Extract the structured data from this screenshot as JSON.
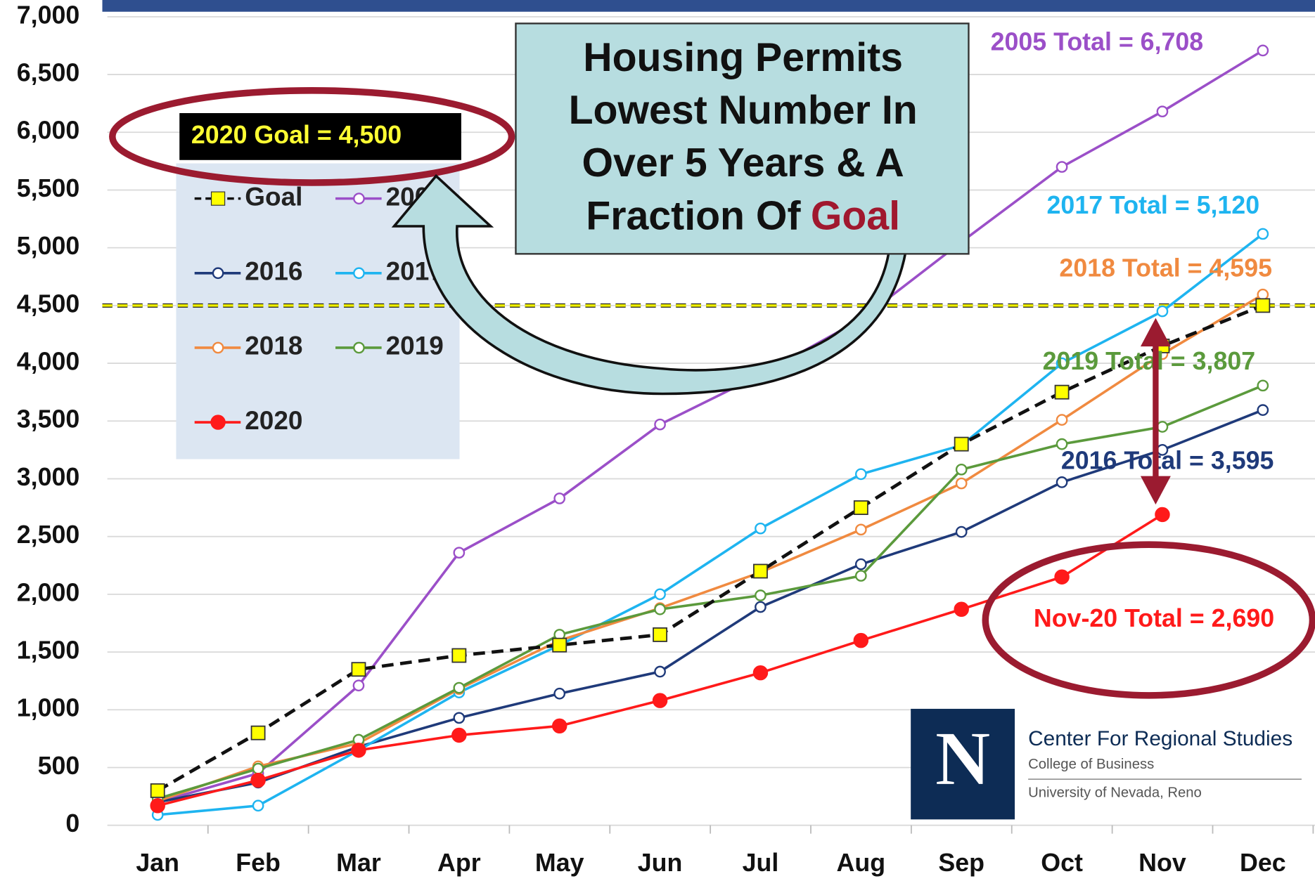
{
  "chart_data": {
    "type": "line",
    "categories": [
      "Jan",
      "Feb",
      "Mar",
      "Apr",
      "May",
      "Jun",
      "Jul",
      "Aug",
      "Sep",
      "Oct",
      "Nov",
      "Dec"
    ],
    "ylim": [
      0,
      7000
    ],
    "yticks": [
      0,
      500,
      {
        "value": 1000,
        "label": "1,000"
      },
      {
        "value": 1500,
        "label": "1,500"
      },
      {
        "value": 2000,
        "label": "2,000"
      },
      {
        "value": 2500,
        "label": "2,500"
      },
      {
        "value": 3000,
        "label": "3,000"
      },
      {
        "value": 3500,
        "label": "3,500"
      },
      {
        "value": 4000,
        "label": "4,000"
      },
      {
        "value": 4500,
        "label": "4,500"
      },
      {
        "value": 5000,
        "label": "5,000"
      },
      {
        "value": 5500,
        "label": "5,500"
      },
      {
        "value": 6000,
        "label": "6,000"
      },
      {
        "value": 6500,
        "label": "6,500"
      },
      {
        "value": 7000,
        "label": "7,000"
      }
    ],
    "grid": true,
    "series": [
      {
        "name": "Goal",
        "color": "#111111",
        "values": [
          300,
          800,
          1350,
          1470,
          1560,
          1650,
          2200,
          2750,
          3300,
          3750,
          4150,
          4500
        ]
      },
      {
        "name": "2005",
        "color": "#9b4fc8",
        "values": [
          200,
          450,
          1210,
          2360,
          2830,
          3470,
          3900,
          4380,
          5050,
          5700,
          6180,
          6708
        ]
      },
      {
        "name": "2016",
        "color": "#1f3a7a",
        "values": [
          200,
          370,
          680,
          930,
          1140,
          1330,
          1890,
          2260,
          2540,
          2970,
          3250,
          3595
        ]
      },
      {
        "name": "2017",
        "color": "#1eb4f0",
        "values": [
          90,
          170,
          650,
          1150,
          1560,
          2000,
          2570,
          3040,
          3290,
          4000,
          4450,
          5120
        ]
      },
      {
        "name": "2018",
        "color": "#f08a40",
        "values": [
          210,
          510,
          710,
          1180,
          1600,
          1880,
          2190,
          2560,
          2960,
          3510,
          4080,
          4595
        ]
      },
      {
        "name": "2019",
        "color": "#5b9a3c",
        "values": [
          230,
          490,
          740,
          1190,
          1650,
          1870,
          1990,
          2160,
          3080,
          3300,
          3450,
          3807
        ]
      },
      {
        "name": "2020",
        "color": "#ff1a1a",
        "values": [
          170,
          390,
          650,
          780,
          860,
          1080,
          1320,
          1600,
          1870,
          2150,
          2690,
          null
        ]
      }
    ],
    "goal_line": {
      "value": 4500,
      "color": "#f0f000"
    },
    "goal_label": "2020 Goal = 4,500",
    "annotations": [
      {
        "text": "2005 Total = 6,708",
        "color": "#9b4fc8"
      },
      {
        "text": "2017 Total = 5,120",
        "color": "#1eb4f0"
      },
      {
        "text": "2018 Total = 4,595",
        "color": "#f08a40"
      },
      {
        "text": "2019 Total = 3,807",
        "color": "#5b9a3c"
      },
      {
        "text": "2016 Total = 3,595",
        "color": "#1f3a7a"
      },
      {
        "text": "Nov-20 Total = 2,690",
        "color": "#ff1a1a"
      }
    ],
    "callout": {
      "lines": [
        "Housing Permits",
        "Lowest Number In",
        "Over 5 Years & A",
        "Fraction Of"
      ],
      "highlight": "Goal"
    },
    "logo": {
      "letter": "N",
      "name": "Center For Regional Studies",
      "college": "College of Business",
      "university": "University of Nevada, Reno"
    }
  }
}
